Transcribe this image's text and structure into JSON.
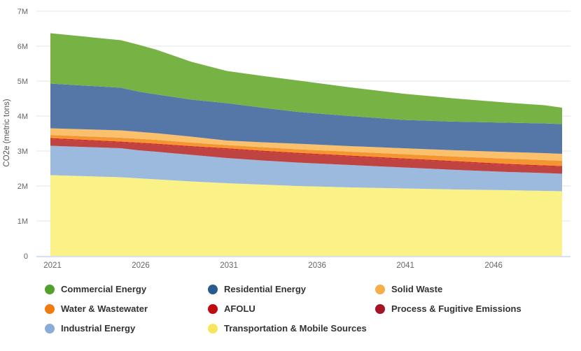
{
  "chart_data": {
    "type": "area",
    "stacked": true,
    "title": "",
    "xlabel": "",
    "ylabel": "CO2e (metric tons)",
    "unit": "million metric tons CO2e",
    "xlim": [
      2021,
      2050
    ],
    "ylim_million_tons": [
      0,
      7
    ],
    "grid": "horizontal",
    "legend_position": "bottom",
    "legend_columns": 3,
    "x": [
      2021,
      2025,
      2026,
      2027,
      2029,
      2031,
      2033,
      2035,
      2038,
      2041,
      2044,
      2047,
      2049,
      2050
    ],
    "x_ticks": [
      2021,
      2026,
      2031,
      2036,
      2041,
      2046
    ],
    "y_ticks": [
      "0",
      "1M",
      "2M",
      "3M",
      "4M",
      "5M",
      "6M",
      "7M"
    ],
    "colors": {
      "grid": "#e6e6e6",
      "axis_line": "#ccd6eb",
      "tick_label": "#666666",
      "axis_title": "#555555",
      "legend_text": "#333333",
      "background": "#ffffff"
    },
    "series": [
      {
        "name": "Commercial Energy",
        "color": "#52a12d",
        "area_color": "#77b344",
        "values_million_tons": [
          1.44,
          1.36,
          1.34,
          1.28,
          1.08,
          0.92,
          0.91,
          0.9,
          0.82,
          0.75,
          0.66,
          0.57,
          0.52,
          0.47
        ]
      },
      {
        "name": "Residential Energy",
        "color": "#2a5b8e",
        "area_color": "#5577a8",
        "values_million_tons": [
          1.28,
          1.22,
          1.15,
          1.11,
          1.06,
          1.07,
          0.99,
          0.91,
          0.86,
          0.81,
          0.82,
          0.84,
          0.85,
          0.85
        ]
      },
      {
        "name": "Solid Waste",
        "color": "#f4af4b",
        "area_color": "#fbc06b",
        "values_million_tons": [
          0.19,
          0.21,
          0.2,
          0.19,
          0.17,
          0.13,
          0.14,
          0.16,
          0.16,
          0.17,
          0.18,
          0.19,
          0.2,
          0.2
        ]
      },
      {
        "name": "Water & Wastewater",
        "color": "#f07c10",
        "area_color": "#f39531",
        "values_million_tons": [
          0.09,
          0.11,
          0.11,
          0.11,
          0.1,
          0.09,
          0.1,
          0.1,
          0.11,
          0.12,
          0.13,
          0.15,
          0.15,
          0.15
        ]
      },
      {
        "name": "AFOLU",
        "color": "#c00c10",
        "area_color": "#d0282a",
        "values_million_tons": [
          0.03,
          0.03,
          0.03,
          0.03,
          0.03,
          0.03,
          0.03,
          0.03,
          0.03,
          0.03,
          0.03,
          0.03,
          0.03,
          0.03
        ]
      },
      {
        "name": "Process & Fugitive Emissions",
        "color": "#a41425",
        "area_color": "#bf4340",
        "values_million_tons": [
          0.19,
          0.16,
          0.19,
          0.2,
          0.22,
          0.25,
          0.25,
          0.25,
          0.24,
          0.23,
          0.22,
          0.2,
          0.19,
          0.19
        ]
      },
      {
        "name": "Industrial Energy",
        "color": "#88add8",
        "area_color": "#9cbade",
        "values_million_tons": [
          0.84,
          0.83,
          0.8,
          0.79,
          0.76,
          0.72,
          0.69,
          0.67,
          0.64,
          0.6,
          0.56,
          0.52,
          0.51,
          0.5
        ]
      },
      {
        "name": "Transportation & Mobile Sources",
        "color": "#f7e55b",
        "area_color": "#faf287",
        "values_million_tons": [
          2.31,
          2.25,
          2.22,
          2.19,
          2.13,
          2.08,
          2.04,
          2.0,
          1.96,
          1.93,
          1.9,
          1.88,
          1.86,
          1.85
        ]
      }
    ],
    "totals_note": "stack order bottom-to-top is reverse of series list; total 2021 ≈ 6.37M, total 2050 ≈ 4.24M"
  }
}
